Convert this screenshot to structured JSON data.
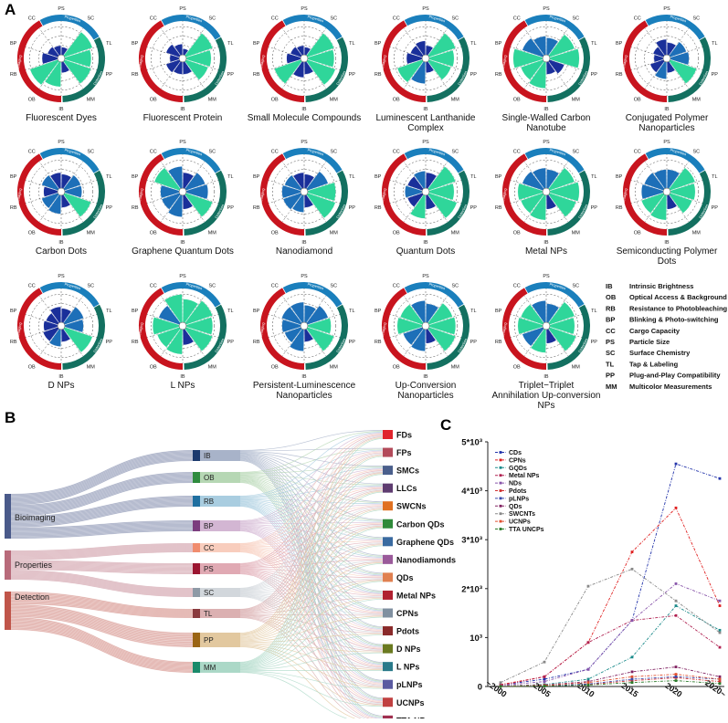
{
  "panel_labels": {
    "a": "A",
    "b": "B",
    "c": "C"
  },
  "ring_labels": {
    "bio": "Bioimaging",
    "prop": "Properties",
    "det": "Detection"
  },
  "axes_codes": [
    "IB",
    "OB",
    "RB",
    "BP",
    "CC",
    "PS",
    "SC",
    "TL",
    "PP",
    "MM"
  ],
  "colors": {
    "bio_ring": "#c8141e",
    "prop_ring": "#1a7fbc",
    "det_ring": "#137060",
    "bar_low": "#1a2f9a",
    "bar_mid": "#1d6fb8",
    "bar_high": "#2fd69a",
    "sankey_bio": "#4a5a8a",
    "sankey_prop": "#b86a7a",
    "sankey_det": "#c0554a"
  },
  "radars": [
    {
      "title": "Fluorescent Dyes",
      "values": [
        0.8,
        0.95,
        0.5,
        0.35,
        0.3,
        0.25,
        0.95,
        0.85,
        0.9,
        0.35
      ]
    },
    {
      "title": "Fluorescent Protein",
      "values": [
        0.4,
        0.45,
        0.3,
        0.45,
        0.35,
        0.2,
        0.9,
        0.8,
        0.75,
        0.4
      ]
    },
    {
      "title": "Small Molecule Compounds",
      "values": [
        0.5,
        0.9,
        0.45,
        0.35,
        0.3,
        0.25,
        0.9,
        0.85,
        0.95,
        0.4
      ]
    },
    {
      "title": "Luminescent Lanthanide Complex",
      "values": [
        0.7,
        0.85,
        0.5,
        0.4,
        0.45,
        0.3,
        0.9,
        0.8,
        0.75,
        0.35
      ]
    },
    {
      "title": "Single-Walled Carbon Nanotube",
      "values": [
        0.85,
        0.75,
        0.95,
        0.7,
        0.6,
        0.55,
        0.85,
        0.95,
        0.5,
        0.4
      ]
    },
    {
      "title": "Conjugated Polymer Nanoparticles",
      "values": [
        0.55,
        0.45,
        0.3,
        0.35,
        0.5,
        0.4,
        0.55,
        0.6,
        0.9,
        0.35
      ]
    },
    {
      "title": "Carbon Dots",
      "values": [
        0.6,
        0.55,
        0.45,
        0.55,
        0.5,
        0.45,
        0.55,
        0.55,
        0.9,
        0.4
      ]
    },
    {
      "title": "Graphene Quantum Dots",
      "values": [
        0.7,
        0.6,
        0.6,
        0.85,
        0.7,
        0.5,
        0.65,
        0.7,
        0.9,
        0.45
      ]
    },
    {
      "title": "Nanodiamond",
      "values": [
        0.55,
        0.6,
        0.6,
        0.55,
        0.5,
        0.45,
        0.7,
        0.9,
        0.95,
        0.4
      ]
    },
    {
      "title": "Quantum Dots",
      "values": [
        0.75,
        0.5,
        0.55,
        0.5,
        0.55,
        0.5,
        0.9,
        0.8,
        0.95,
        0.45
      ]
    },
    {
      "title": "Metal NPs",
      "values": [
        0.8,
        0.75,
        0.8,
        0.7,
        0.65,
        0.6,
        0.85,
        0.95,
        0.9,
        0.45
      ]
    },
    {
      "title": "Semiconducting Polymer Dots",
      "values": [
        0.8,
        0.75,
        0.7,
        0.65,
        0.6,
        0.6,
        0.85,
        0.8,
        0.75,
        0.45
      ]
    },
    {
      "title": "D NPs",
      "values": [
        0.55,
        0.5,
        0.45,
        0.4,
        0.5,
        0.45,
        0.65,
        0.6,
        0.95,
        0.4
      ]
    },
    {
      "title": "L NPs",
      "values": [
        0.8,
        0.75,
        0.85,
        0.7,
        0.9,
        0.75,
        0.9,
        0.85,
        0.9,
        0.5
      ]
    },
    {
      "title": "Persistent-Luminescence Nanoparticles",
      "values": [
        0.7,
        0.55,
        0.6,
        0.65,
        0.65,
        0.55,
        0.7,
        0.75,
        0.9,
        0.4
      ]
    },
    {
      "title": "Up-Conversion Nanoparticles",
      "values": [
        0.7,
        0.65,
        0.8,
        0.75,
        0.7,
        0.6,
        0.8,
        0.85,
        0.9,
        0.45
      ]
    },
    {
      "title": "Triplet−Triplet Annihilation Up-conversion NPs",
      "values": [
        0.75,
        0.7,
        0.8,
        0.75,
        0.7,
        0.6,
        0.85,
        0.8,
        0.9,
        0.45
      ]
    }
  ],
  "abbreviations": [
    {
      "code": "IB",
      "text": "Intrinsic Brightness"
    },
    {
      "code": "OB",
      "text": "Optical Access & Background"
    },
    {
      "code": "RB",
      "text": "Resistance to Photobleaching"
    },
    {
      "code": "BP",
      "text": "Blinking & Photo-switching"
    },
    {
      "code": "CC",
      "text": "Cargo Capacity"
    },
    {
      "code": "PS",
      "text": "Particle Size"
    },
    {
      "code": "SC",
      "text": "Surface Chemistry"
    },
    {
      "code": "TL",
      "text": "Tap & Labeling"
    },
    {
      "code": "PP",
      "text": "Plug-and-Play Compatibility"
    },
    {
      "code": "MM",
      "text": "Multicolor Measurements"
    }
  ],
  "sankey": {
    "groups": [
      {
        "label": "Bioimaging",
        "color": "#4a5a8a"
      },
      {
        "label": "Properties",
        "color": "#b86a7a"
      },
      {
        "label": "Detection",
        "color": "#c0554a"
      }
    ],
    "mid_nodes": [
      {
        "label": "IB",
        "color": "#1c3a6e",
        "band": "#a8b3c9"
      },
      {
        "label": "OB",
        "color": "#2e8b3e",
        "band": "#b6d7b4"
      },
      {
        "label": "RB",
        "color": "#1f6fa0",
        "band": "#a9cde0"
      },
      {
        "label": "BP",
        "color": "#7b3d7e",
        "band": "#d3b6d3"
      },
      {
        "label": "CC",
        "color": "#f08c6e",
        "band": "#f8cdbd"
      },
      {
        "label": "PS",
        "color": "#9b1530",
        "band": "#e0a9b3"
      },
      {
        "label": "SC",
        "color": "#8e9aa6",
        "band": "#d2d7dc"
      },
      {
        "label": "TL",
        "color": "#8a3a3e",
        "band": "#dbb0b1"
      },
      {
        "label": "PP",
        "color": "#9a6414",
        "band": "#e2c89f"
      },
      {
        "label": "MM",
        "color": "#1a8a6a",
        "band": "#abd8c7"
      }
    ],
    "targets": [
      {
        "label": "FDs",
        "color": "#e0242c"
      },
      {
        "label": "FPs",
        "color": "#b34a5a"
      },
      {
        "label": "SMCs",
        "color": "#4a5f8c"
      },
      {
        "label": "LLCs",
        "color": "#5e3c70"
      },
      {
        "label": "SWCNs",
        "color": "#e07020"
      },
      {
        "label": "Carbon QDs",
        "color": "#2f8a3a"
      },
      {
        "label": "Graphene QDs",
        "color": "#3a6aa0"
      },
      {
        "label": "Nanodiamonds",
        "color": "#9a5a9a"
      },
      {
        "label": "QDs",
        "color": "#e08050"
      },
      {
        "label": "Metal NPs",
        "color": "#b02030"
      },
      {
        "label": "CPNs",
        "color": "#8090a0"
      },
      {
        "label": "Pdots",
        "color": "#8a2a2a"
      },
      {
        "label": "D NPs",
        "color": "#6a7a20"
      },
      {
        "label": "L NPs",
        "color": "#2a7a8a"
      },
      {
        "label": "pLNPs",
        "color": "#5a5aa0"
      },
      {
        "label": "UCNPs",
        "color": "#c04040"
      },
      {
        "label": "TTA NPs",
        "color": "#a03050"
      }
    ]
  },
  "chart_data": {
    "type": "line",
    "title": "",
    "xlabel": "",
    "ylabel": "",
    "categories": [
      "~2000",
      "2005",
      "2010",
      "2015",
      "2020",
      "2020~"
    ],
    "y_tick_labels": [
      "0",
      "10³",
      "2*10³",
      "3*10³",
      "4*10³",
      "5*10³"
    ],
    "y_tick_values": [
      0,
      1000,
      2000,
      3000,
      4000,
      5000
    ],
    "ylim": [
      0,
      5000
    ],
    "legend_position": "top-left",
    "series": [
      {
        "name": "CDs",
        "color": "#2233aa",
        "values": [
          30,
          150,
          350,
          1350,
          4550,
          4250
        ]
      },
      {
        "name": "CPNs",
        "color": "#e02020",
        "values": [
          40,
          200,
          900,
          2750,
          3650,
          1650
        ]
      },
      {
        "name": "GQDs",
        "color": "#1a8a8a",
        "values": [
          10,
          40,
          150,
          600,
          1650,
          1150
        ]
      },
      {
        "name": "Metal NPs",
        "color": "#b02050",
        "values": [
          20,
          200,
          900,
          1350,
          1450,
          800
        ]
      },
      {
        "name": "NDs",
        "color": "#8855aa",
        "values": [
          20,
          100,
          350,
          1350,
          2100,
          1750
        ]
      },
      {
        "name": "Pdots",
        "color": "#d03030",
        "values": [
          5,
          10,
          40,
          120,
          180,
          100
        ]
      },
      {
        "name": "pLNPs",
        "color": "#3a4aaa",
        "values": [
          5,
          15,
          50,
          150,
          200,
          150
        ]
      },
      {
        "name": "QDs",
        "color": "#802060",
        "values": [
          10,
          30,
          100,
          300,
          400,
          200
        ]
      },
      {
        "name": "SWCNTs",
        "color": "#888888",
        "values": [
          80,
          500,
          2050,
          2400,
          1750,
          1100
        ]
      },
      {
        "name": "UCNPs",
        "color": "#e05030",
        "values": [
          5,
          20,
          80,
          200,
          250,
          150
        ]
      },
      {
        "name": "TTA UNCPs",
        "color": "#2a7a2a",
        "values": [
          2,
          10,
          30,
          80,
          120,
          60
        ]
      }
    ]
  }
}
